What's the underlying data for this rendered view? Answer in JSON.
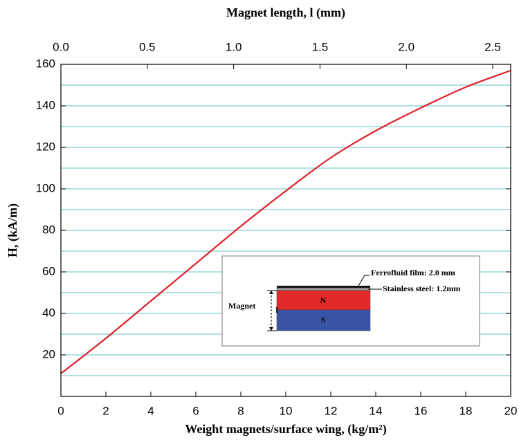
{
  "chart_data": {
    "type": "line",
    "x_label": "Weight magnets/surface wing,  (kg/m²)",
    "y_label": "H, (kA/m)",
    "x2_label": "Magnet length, l (mm)",
    "x": [
      0,
      2,
      4,
      6,
      8,
      10,
      12,
      14,
      16,
      18,
      20
    ],
    "values": [
      11,
      28,
      46,
      64,
      82,
      99,
      115,
      128,
      139,
      149,
      157
    ],
    "color": "#e0202a",
    "xlim": [
      0,
      20
    ],
    "xticks": [
      0,
      2,
      4,
      6,
      8,
      10,
      12,
      14,
      16,
      18,
      20
    ],
    "ylim": [
      0,
      160
    ],
    "yticks": [
      20,
      40,
      60,
      80,
      100,
      120,
      140,
      160
    ],
    "ygrid": [
      10,
      20,
      30,
      40,
      50,
      60,
      70,
      80,
      90,
      100,
      110,
      120,
      130,
      140,
      150
    ],
    "grid_color": "#7fcfd0",
    "x2lim": [
      0,
      2.604
    ],
    "x2ticks": [
      {
        "value": 0,
        "label": "0.0"
      },
      {
        "value": 0.5,
        "label": "0.5"
      },
      {
        "value": 1,
        "label": "1.0"
      },
      {
        "value": 1.5,
        "label": "1.5"
      },
      {
        "value": 2,
        "label": "2.0"
      },
      {
        "value": 2.5,
        "label": "2.5"
      }
    ],
    "inset": {
      "film": "Ferrofluid film: 2.0 mm",
      "steel": "Stainless steel: 1.2mm",
      "magnet": "Magnet",
      "length": "l",
      "north": "N",
      "south": "S"
    }
  }
}
